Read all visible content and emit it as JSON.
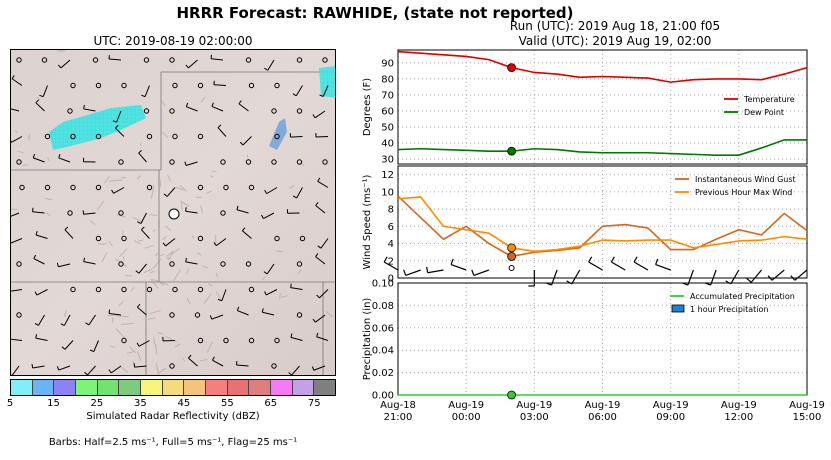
{
  "header": {
    "title": "HRRR Forecast: RAWHIDE, (state not reported)",
    "map_time": "UTC: 2019-08-19 02:00:00",
    "run": "Run (UTC): 2019 Aug 18, 21:00 f05",
    "valid": "Valid (UTC): 2019 Aug 19, 02:00"
  },
  "colorbar": {
    "label": "Simulated Radar Reflectivity (dBZ)",
    "ticks": [
      "5",
      "15",
      "25",
      "35",
      "45",
      "55",
      "65",
      "75"
    ],
    "colors": [
      "#7ff0f5",
      "#6ab4f5",
      "#8a82f5",
      "#7af57a",
      "#72e272",
      "#7ecb7e",
      "#f5f57a",
      "#f5dc7a",
      "#f5c47a",
      "#f57f7f",
      "#e67272",
      "#dd7f7f",
      "#f57af5",
      "#c2a2e6",
      "#7f7f7f"
    ]
  },
  "barb_note": "Barbs: Half=2.5 ms⁻¹, Full=5 ms⁻¹, Flag=25 ms⁻¹",
  "x_axis": {
    "ticks": [
      {
        "h": 0,
        "l1": "Aug-18",
        "l2": "21:00"
      },
      {
        "h": 3,
        "l1": "Aug-19",
        "l2": "00:00"
      },
      {
        "h": 6,
        "l1": "Aug-19",
        "l2": "03:00"
      },
      {
        "h": 9,
        "l1": "Aug-19",
        "l2": "06:00"
      },
      {
        "h": 12,
        "l1": "Aug-19",
        "l2": "09:00"
      },
      {
        "h": 15,
        "l1": "Aug-19",
        "l2": "12:00"
      },
      {
        "h": 18,
        "l1": "Aug-19",
        "l2": "15:00"
      }
    ]
  },
  "chart_data": [
    {
      "type": "line",
      "ylabel": "Degrees (F)",
      "xlim": [
        0,
        18
      ],
      "ylim": [
        27,
        98
      ],
      "yticks": [
        30,
        40,
        50,
        60,
        70,
        80,
        90
      ],
      "grid": true,
      "legend": "right",
      "marker_x": 5,
      "series": [
        {
          "name": "Temperature",
          "color": "#dd0000",
          "x": [
            0,
            1,
            2,
            3,
            4,
            5,
            6,
            7,
            8,
            9,
            10,
            11,
            12,
            13,
            14,
            15,
            16,
            17,
            18
          ],
          "values": [
            97,
            96,
            95,
            94,
            92,
            87,
            84,
            83,
            81,
            81.5,
            81,
            80.5,
            78,
            79.5,
            80,
            80,
            79.5,
            83,
            87
          ]
        },
        {
          "name": "Dew Point",
          "color": "#007700",
          "x": [
            0,
            1,
            2,
            3,
            4,
            5,
            6,
            7,
            8,
            9,
            10,
            11,
            12,
            13,
            14,
            15,
            16,
            17,
            18
          ],
          "values": [
            36,
            36.5,
            36,
            35.5,
            35,
            35,
            36.5,
            36,
            34.5,
            34,
            34,
            34,
            33.5,
            33,
            32.5,
            32.5,
            37,
            42,
            42
          ]
        }
      ]
    },
    {
      "type": "line",
      "ylabel": "Wind Speed (ms⁻¹)",
      "xlim": [
        0,
        18
      ],
      "ylim": [
        0,
        13
      ],
      "yticks": [
        0,
        2,
        4,
        6,
        8,
        10,
        12
      ],
      "grid": true,
      "legend": "top-right",
      "marker_x": 5,
      "series": [
        {
          "name": "Instantaneous Wind Gust",
          "color": "#d2691e",
          "x": [
            0,
            1,
            2,
            3,
            4,
            5,
            6,
            7,
            8,
            9,
            10,
            11,
            12,
            13,
            14,
            15,
            16,
            17,
            18
          ],
          "values": [
            9.5,
            7,
            4.5,
            6,
            4,
            2.5,
            3,
            3.2,
            3.5,
            6,
            6.2,
            5.8,
            3.3,
            3.3,
            4.5,
            5.6,
            5,
            7.5,
            5.5
          ]
        },
        {
          "name": "Previous Hour Max Wind",
          "color": "#ff8c00",
          "x": [
            0,
            1,
            2,
            3,
            4,
            5,
            6,
            7,
            8,
            9,
            10,
            11,
            12,
            13,
            14,
            15,
            16,
            17,
            18
          ],
          "values": [
            9.2,
            9.4,
            6,
            5.6,
            5.2,
            3.5,
            3.1,
            3.3,
            3.7,
            4.4,
            4.3,
            4.4,
            4.4,
            3.5,
            3.9,
            4.3,
            4.4,
            4.8,
            4.5
          ]
        }
      ],
      "barbs": [
        {
          "x": 0,
          "speed": 7,
          "dir": 300
        },
        {
          "x": 1,
          "speed": 3,
          "dir": 250
        },
        {
          "x": 2,
          "speed": 4,
          "dir": 260
        },
        {
          "x": 3,
          "speed": 5,
          "dir": 290
        },
        {
          "x": 4,
          "speed": 3,
          "dir": 250
        },
        {
          "x": 5,
          "speed": 0,
          "dir": 0
        },
        {
          "x": 6,
          "speed": 2,
          "dir": 180
        },
        {
          "x": 7,
          "speed": 2,
          "dir": 200
        },
        {
          "x": 8,
          "speed": 3,
          "dir": 210
        },
        {
          "x": 9,
          "speed": 4,
          "dir": 300
        },
        {
          "x": 10,
          "speed": 4,
          "dir": 300
        },
        {
          "x": 11,
          "speed": 4,
          "dir": 300
        },
        {
          "x": 12,
          "speed": 4,
          "dir": 290
        },
        {
          "x": 13,
          "speed": 3,
          "dir": 200
        },
        {
          "x": 14,
          "speed": 3,
          "dir": 200
        },
        {
          "x": 15,
          "speed": 4,
          "dir": 210
        },
        {
          "x": 16,
          "speed": 4,
          "dir": 220
        },
        {
          "x": 17,
          "speed": 5,
          "dir": 230
        },
        {
          "x": 18,
          "speed": 5,
          "dir": 230
        }
      ]
    },
    {
      "type": "line",
      "ylabel": "Precipitation (in)",
      "xlim": [
        0,
        18
      ],
      "ylim": [
        0,
        0.1
      ],
      "yticks": [
        0.0,
        0.02,
        0.04,
        0.06,
        0.08,
        0.1
      ],
      "ytick_labels": [
        "0.00",
        "0.02",
        "0.04",
        "0.06",
        "0.08",
        "0.10"
      ],
      "grid": true,
      "legend": "top-right",
      "marker_x": 5,
      "series": [
        {
          "name": "Accumulated Precipitation",
          "color": "#33cc33",
          "x": [
            0,
            18
          ],
          "values": [
            0,
            0
          ]
        },
        {
          "name": "1 hour Precipitation",
          "color": "#1e7fd6",
          "kind": "bar",
          "x": [],
          "values": []
        }
      ]
    }
  ],
  "map": {
    "station_label": "RAWHIDE",
    "echo_colors": [
      "#3fe6e6",
      "#6a9fd8"
    ]
  }
}
